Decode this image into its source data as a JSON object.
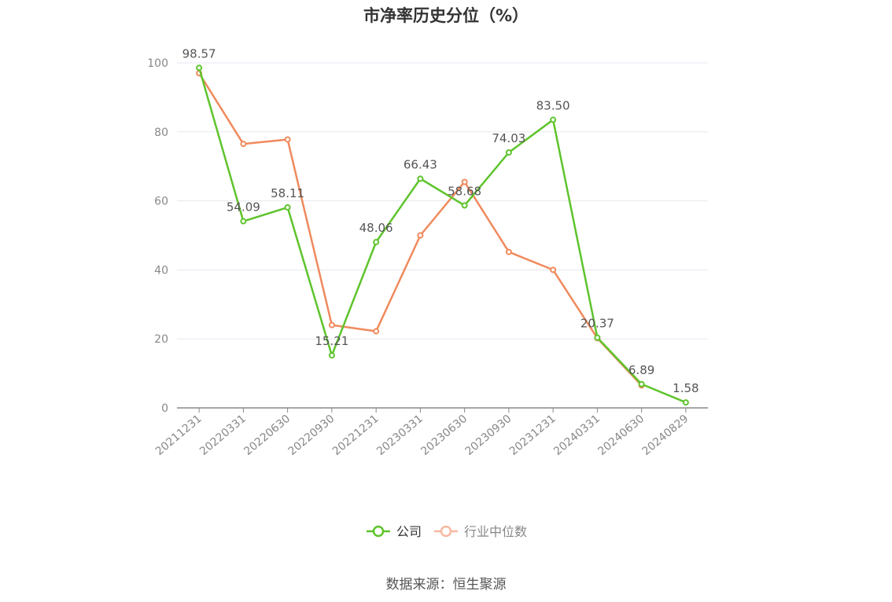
{
  "chart_data": {
    "type": "line",
    "title": "市净率历史分位（%）",
    "x": [
      "20211231",
      "20220331",
      "20220630",
      "20220930",
      "20221231",
      "20230331",
      "20230630",
      "20230930",
      "20231231",
      "20240331",
      "20240630",
      "20240829"
    ],
    "ylim": [
      0,
      100
    ],
    "yticks": [
      0,
      20,
      40,
      60,
      80,
      100
    ],
    "grid": true,
    "legend_position": "bottom",
    "series": [
      {
        "name": "公司",
        "color": "#5ec42c",
        "values": [
          98.57,
          54.09,
          58.11,
          15.21,
          48.06,
          66.43,
          58.68,
          74.03,
          83.5,
          20.37,
          6.89,
          1.58
        ],
        "labels": [
          "98.57",
          "54.09",
          "58.11",
          "15.21",
          "48.06",
          "66.43",
          "58.68",
          "74.03",
          "83.50",
          "20.37",
          "6.89",
          "1.58"
        ]
      },
      {
        "name": "行业中位数",
        "color": "#f08a5d",
        "values": [
          97.0,
          76.5,
          77.8,
          24.0,
          22.2,
          50.0,
          65.5,
          45.2,
          40.0,
          20.2,
          6.5,
          null
        ]
      }
    ]
  },
  "source_text": "数据来源：恒生聚源"
}
